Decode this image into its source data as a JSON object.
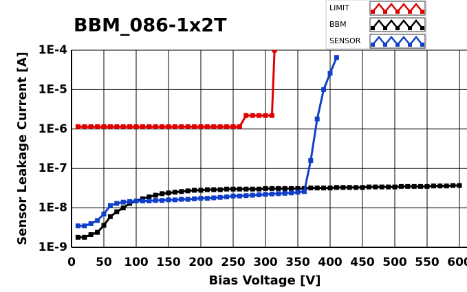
{
  "chart_data": {
    "type": "line",
    "title": "BBM_086-1x2T",
    "xlabel": "Bias Voltage [V]",
    "ylabel": "Sensor Leakage Current [A]",
    "xlim": [
      0,
      600
    ],
    "xticks": [
      0,
      50,
      100,
      150,
      200,
      250,
      300,
      350,
      400,
      450,
      500,
      550,
      600
    ],
    "ylim": [
      1e-09,
      0.0001
    ],
    "log_y": true,
    "grid": true,
    "yticks": [
      {
        "value": 1e-09,
        "label": "1E-9"
      },
      {
        "value": 1e-08,
        "label": "1E-8"
      },
      {
        "value": 1e-07,
        "label": "1E-7"
      },
      {
        "value": 1e-06,
        "label": "1E-6"
      },
      {
        "value": 1e-05,
        "label": "1E-5"
      },
      {
        "value": 0.0001,
        "label": "1E-4"
      }
    ],
    "series": [
      {
        "name": "LIMIT",
        "color": "#e00000",
        "x": [
          10,
          20,
          30,
          40,
          50,
          60,
          70,
          80,
          90,
          100,
          110,
          120,
          130,
          140,
          150,
          160,
          170,
          180,
          190,
          200,
          210,
          220,
          230,
          240,
          250,
          260,
          270,
          280,
          290,
          300,
          310,
          314
        ],
        "values": [
          1.15e-06,
          1.15e-06,
          1.15e-06,
          1.15e-06,
          1.15e-06,
          1.15e-06,
          1.15e-06,
          1.15e-06,
          1.15e-06,
          1.15e-06,
          1.15e-06,
          1.15e-06,
          1.15e-06,
          1.15e-06,
          1.15e-06,
          1.15e-06,
          1.15e-06,
          1.15e-06,
          1.15e-06,
          1.15e-06,
          1.15e-06,
          1.15e-06,
          1.15e-06,
          1.15e-06,
          1.15e-06,
          1.15e-06,
          2.2e-06,
          2.2e-06,
          2.2e-06,
          2.2e-06,
          2.2e-06,
          0.0001
        ]
      },
      {
        "name": "BBM",
        "color": "#000000",
        "x": [
          10,
          20,
          30,
          40,
          50,
          60,
          70,
          80,
          90,
          100,
          110,
          120,
          130,
          140,
          150,
          160,
          170,
          180,
          190,
          200,
          210,
          220,
          230,
          240,
          250,
          260,
          270,
          280,
          290,
          300,
          310,
          320,
          330,
          340,
          350,
          360,
          370,
          380,
          390,
          400,
          410,
          420,
          430,
          440,
          450,
          460,
          470,
          480,
          490,
          500,
          510,
          520,
          530,
          540,
          550,
          560,
          570,
          580,
          590,
          600
        ],
        "values": [
          1.8e-09,
          1.8e-09,
          2.1e-09,
          2.4e-09,
          3.6e-09,
          6e-09,
          8e-09,
          1e-08,
          1.3e-08,
          1.5e-08,
          1.7e-08,
          1.9e-08,
          2.1e-08,
          2.3e-08,
          2.4e-08,
          2.5e-08,
          2.6e-08,
          2.7e-08,
          2.8e-08,
          2.8e-08,
          2.9e-08,
          2.9e-08,
          2.9e-08,
          3e-08,
          3e-08,
          3e-08,
          3e-08,
          3e-08,
          3e-08,
          3.1e-08,
          3.1e-08,
          3.1e-08,
          3.1e-08,
          3.1e-08,
          3.1e-08,
          3.1e-08,
          3.2e-08,
          3.2e-08,
          3.2e-08,
          3.2e-08,
          3.3e-08,
          3.3e-08,
          3.3e-08,
          3.3e-08,
          3.3e-08,
          3.4e-08,
          3.4e-08,
          3.4e-08,
          3.4e-08,
          3.4e-08,
          3.5e-08,
          3.5e-08,
          3.5e-08,
          3.5e-08,
          3.5e-08,
          3.6e-08,
          3.6e-08,
          3.6e-08,
          3.7e-08,
          3.7e-08
        ]
      },
      {
        "name": "SENSOR",
        "color": "#1040c8",
        "x": [
          10,
          20,
          30,
          40,
          50,
          60,
          70,
          80,
          90,
          100,
          110,
          120,
          130,
          140,
          150,
          160,
          170,
          180,
          190,
          200,
          210,
          220,
          230,
          240,
          250,
          260,
          270,
          280,
          290,
          300,
          310,
          320,
          330,
          340,
          350,
          360,
          370,
          380,
          390,
          400,
          410
        ],
        "values": [
          3.5e-09,
          3.5e-09,
          4e-09,
          4.8e-09,
          7e-09,
          1.15e-08,
          1.3e-08,
          1.4e-08,
          1.45e-08,
          1.5e-08,
          1.5e-08,
          1.5e-08,
          1.55e-08,
          1.55e-08,
          1.6e-08,
          1.6e-08,
          1.65e-08,
          1.65e-08,
          1.7e-08,
          1.75e-08,
          1.75e-08,
          1.8e-08,
          1.85e-08,
          1.9e-08,
          2e-08,
          2e-08,
          2.05e-08,
          2.1e-08,
          2.15e-08,
          2.2e-08,
          2.25e-08,
          2.3e-08,
          2.35e-08,
          2.4e-08,
          2.5e-08,
          2.6e-08,
          1.6e-07,
          1.8e-06,
          1e-05,
          2.6e-05,
          6.5e-05
        ]
      }
    ]
  }
}
